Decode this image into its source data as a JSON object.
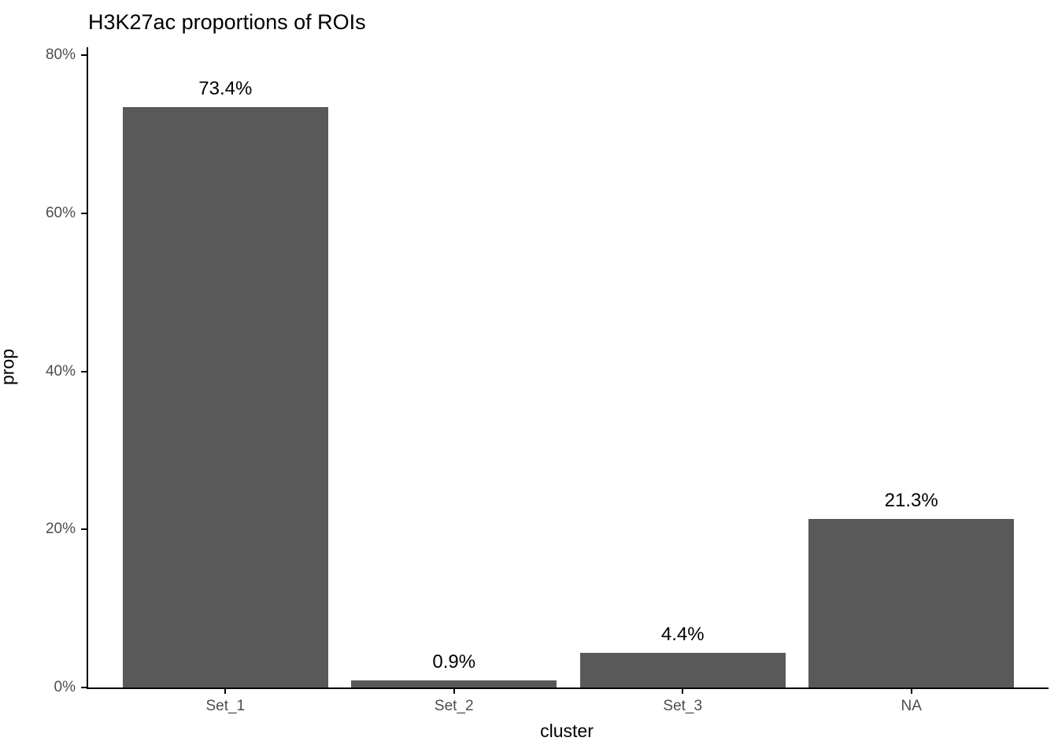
{
  "chart_data": {
    "type": "bar",
    "title": "H3K27ac proportions of ROIs",
    "xlabel": "cluster",
    "ylabel": "prop",
    "categories": [
      "Set_1",
      "Set_2",
      "Set_3",
      "NA"
    ],
    "values": [
      73.4,
      0.9,
      4.4,
      21.3
    ],
    "bar_labels": [
      "73.4%",
      "0.9%",
      "4.4%",
      "21.3%"
    ],
    "ylim": [
      0,
      80
    ],
    "yticks": [
      0,
      20,
      40,
      60,
      80
    ],
    "ytick_labels": [
      "0%",
      "20%",
      "40%",
      "60%",
      "80%"
    ],
    "grid": false,
    "legend": "none",
    "colors": {
      "bar_fill": "#595959",
      "axis_text": "#4D4D4D",
      "axis_line": "#000000",
      "label_text": "#000000",
      "background": "#FFFFFF"
    }
  }
}
